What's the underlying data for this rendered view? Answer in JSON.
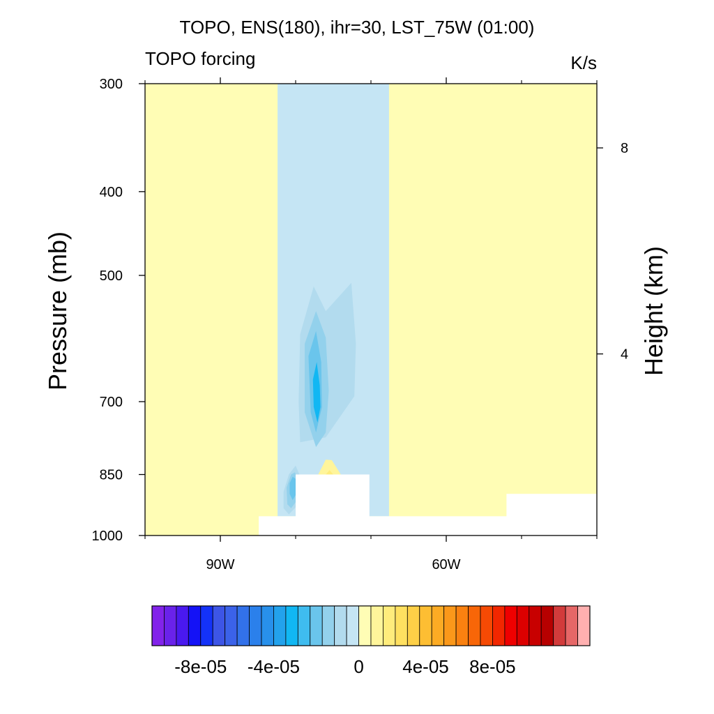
{
  "chart_data": {
    "type": "heatmap",
    "title": "TOPO, ENS(180), ihr=30, LST_75W (01:00)",
    "left_string": "TOPO forcing",
    "right_string": "K/s",
    "ylabel": "Pressure (mb)",
    "y2label": "Height (km)",
    "x_axis": {
      "range": [
        -100,
        -40
      ],
      "major_ticks": [
        -90,
        -60
      ],
      "tick_labels": [
        "90W",
        "60W"
      ],
      "minor_ticks": [
        -100,
        -80,
        -70,
        -50,
        -40
      ]
    },
    "y_axis": {
      "scale": "log",
      "range": [
        1000,
        300
      ],
      "ticks": [
        300,
        400,
        500,
        700,
        850,
        1000
      ],
      "tick_labels": [
        "300",
        "400",
        "500",
        "700",
        "850",
        "1000"
      ]
    },
    "y2_axis": {
      "ticks": [
        8,
        4
      ],
      "tick_labels": [
        "8",
        "4"
      ]
    },
    "background_level": 0,
    "regions": [
      {
        "name": "negative-band",
        "level": -1,
        "polygon": [
          [
            -82.4,
            300
          ],
          [
            -67.6,
            300
          ],
          [
            -67.6,
            950
          ],
          [
            -82.4,
            950
          ]
        ]
      },
      {
        "name": "plume-outer",
        "level": -2,
        "polygon": [
          [
            -79.4,
            585
          ],
          [
            -77.6,
            515
          ],
          [
            -76.0,
            550
          ],
          [
            -72.6,
            510
          ],
          [
            -72.0,
            600
          ],
          [
            -72.2,
            690
          ],
          [
            -76.0,
            770
          ],
          [
            -79.4,
            780
          ],
          [
            -79.6,
            700
          ]
        ]
      },
      {
        "name": "plume-mid",
        "level": -3,
        "polygon": [
          [
            -78.8,
            600
          ],
          [
            -77.3,
            550
          ],
          [
            -76.0,
            590
          ],
          [
            -75.6,
            680
          ],
          [
            -76.0,
            760
          ],
          [
            -77.3,
            790
          ],
          [
            -78.8,
            720
          ]
        ]
      },
      {
        "name": "plume-inner",
        "level": -4,
        "polygon": [
          [
            -78.3,
            620
          ],
          [
            -77.3,
            580
          ],
          [
            -76.6,
            630
          ],
          [
            -76.5,
            710
          ],
          [
            -77.3,
            760
          ],
          [
            -78.0,
            720
          ]
        ]
      },
      {
        "name": "plume-core",
        "level": -6,
        "polygon": [
          [
            -77.7,
            660
          ],
          [
            -77.2,
            630
          ],
          [
            -76.8,
            670
          ],
          [
            -76.7,
            710
          ],
          [
            -77.1,
            740
          ],
          [
            -77.6,
            710
          ]
        ]
      },
      {
        "name": "lower-blob-outer",
        "level": -2,
        "polygon": [
          [
            -81.6,
            890
          ],
          [
            -80.9,
            850
          ],
          [
            -80.0,
            830
          ],
          [
            -79.5,
            850
          ],
          [
            -79.6,
            920
          ],
          [
            -80.9,
            945
          ],
          [
            -81.6,
            930
          ]
        ]
      },
      {
        "name": "lower-blob-inner",
        "level": -3,
        "polygon": [
          [
            -81.2,
            880
          ],
          [
            -80.6,
            850
          ],
          [
            -80.1,
            845
          ],
          [
            -79.7,
            860
          ],
          [
            -79.8,
            910
          ],
          [
            -80.6,
            930
          ],
          [
            -81.1,
            920
          ]
        ]
      },
      {
        "name": "lower-blob-core",
        "level": -4,
        "polygon": [
          [
            -80.8,
            870
          ],
          [
            -80.4,
            855
          ],
          [
            -80.0,
            860
          ],
          [
            -79.9,
            895
          ],
          [
            -80.4,
            910
          ],
          [
            -80.8,
            895
          ]
        ]
      },
      {
        "name": "positive-wedge",
        "level": 1,
        "polygon": [
          [
            -77.0,
            850
          ],
          [
            -76.0,
            817
          ],
          [
            -75.2,
            818
          ],
          [
            -74.0,
            850
          ]
        ]
      },
      {
        "name": "positive-wedge-core",
        "level": 2,
        "polygon": [
          [
            -76.0,
            850
          ],
          [
            -75.5,
            840
          ],
          [
            -75.0,
            850
          ]
        ]
      }
    ],
    "terrain_mask": [
      [
        -84.9,
        1000
      ],
      [
        -84.9,
        950
      ],
      [
        -80.0,
        950
      ],
      [
        -80.0,
        850
      ],
      [
        -70.2,
        850
      ],
      [
        -70.2,
        950
      ],
      [
        -52.0,
        950
      ],
      [
        -52.0,
        895
      ],
      [
        -40.0,
        895
      ],
      [
        -40.0,
        1000
      ]
    ],
    "colorbar": {
      "colors": [
        "#8223ea",
        "#6a22ea",
        "#4a19ef",
        "#1412f6",
        "#1432f8",
        "#3d55e6",
        "#3b62e9",
        "#3271ea",
        "#2b80eb",
        "#2890eb",
        "#23a2ec",
        "#11b7f3",
        "#3fbcef",
        "#6ac5ec",
        "#93d1ec",
        "#b2dbee",
        "#c5e5f4",
        "#fffdb5",
        "#fff59b",
        "#ffec7c",
        "#ffe060",
        "#fed047",
        "#fdbe33",
        "#fcab24",
        "#fb981a",
        "#fa8110",
        "#f86608",
        "#f54a04",
        "#f22700",
        "#ef0000",
        "#dc0000",
        "#c80000",
        "#b70000",
        "#d23b3b",
        "#e66767",
        "#ffb0b0"
      ],
      "labels": [
        "-8e-05",
        "-4e-05",
        "0",
        "4e-05",
        "8e-05"
      ],
      "label_positions": [
        4,
        10,
        17,
        22.5,
        28
      ]
    }
  }
}
